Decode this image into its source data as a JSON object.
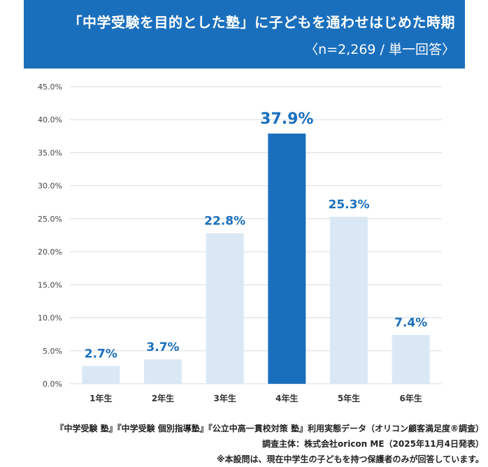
{
  "header": {
    "title": "「中学受験を目的とした塾」に子どもを通わせはじめた時期",
    "subtitle": "〈n=2,269 / 単一回答〉"
  },
  "colors": {
    "header_bg": "#1a6fbd",
    "bar": "#dae8f6",
    "bar_highlight": "#1a6fbd",
    "label": "#1a6fbd",
    "grid": "#d7dde3"
  },
  "chart_data": {
    "type": "bar",
    "categories": [
      "1年生",
      "2年生",
      "3年生",
      "4年生",
      "5年生",
      "6年生"
    ],
    "values": [
      2.7,
      3.7,
      22.8,
      37.9,
      25.3,
      7.4
    ],
    "data_labels": [
      "2.7%",
      "3.7%",
      "22.8%",
      "37.9%",
      "25.3%",
      "7.4%"
    ],
    "highlight_index": 3,
    "ylim": [
      0,
      45
    ],
    "yticks": [
      0,
      5,
      10,
      15,
      20,
      25,
      30,
      35,
      40,
      45
    ],
    "ytick_labels": [
      "0.0%",
      "5.0%",
      "10.0%",
      "15.0%",
      "20.0%",
      "25.0%",
      "30.0%",
      "35.0%",
      "40.0%",
      "45.0%"
    ],
    "grid": true,
    "xlabel": "",
    "ylabel": ""
  },
  "footer": {
    "line1": "『中学受験 塾』『中学受験 個別指導塾』『公立中高一貫校対策 塾』利用実態データ（オリコン顧客満足度®調査）",
    "line2": "調査主体：株式会社oricon ME（2025年11月4日発表）",
    "line3": "※本設問は、現在中学生の子どもを持つ保護者のみが回答しています。"
  }
}
